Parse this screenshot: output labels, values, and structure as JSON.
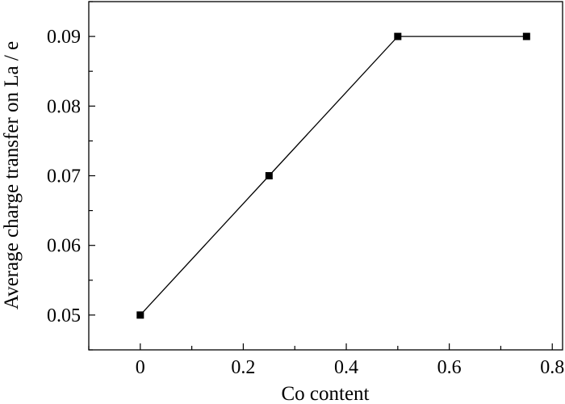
{
  "chart_data": {
    "type": "line",
    "title": "",
    "xlabel": "Co content",
    "ylabel": "Average charge transfer on La / e",
    "xlim": [
      -0.1,
      0.82
    ],
    "ylim": [
      0.045,
      0.095
    ],
    "x_ticks": [
      0,
      0.2,
      0.4,
      0.6,
      0.8
    ],
    "x_tick_labels": [
      "0",
      "0.2",
      "0.4",
      "0.6",
      "0.8"
    ],
    "y_ticks": [
      0.05,
      0.06,
      0.07,
      0.08,
      0.09
    ],
    "y_tick_labels": [
      "0.05",
      "0.06",
      "0.07",
      "0.08",
      "0.09"
    ],
    "grid": false,
    "legend": "none",
    "series": [
      {
        "x": [
          0,
          0.25,
          0.5,
          0.75
        ],
        "y": [
          0.05,
          0.07,
          0.09,
          0.09
        ],
        "marker": "square",
        "color": "#000000"
      }
    ]
  }
}
